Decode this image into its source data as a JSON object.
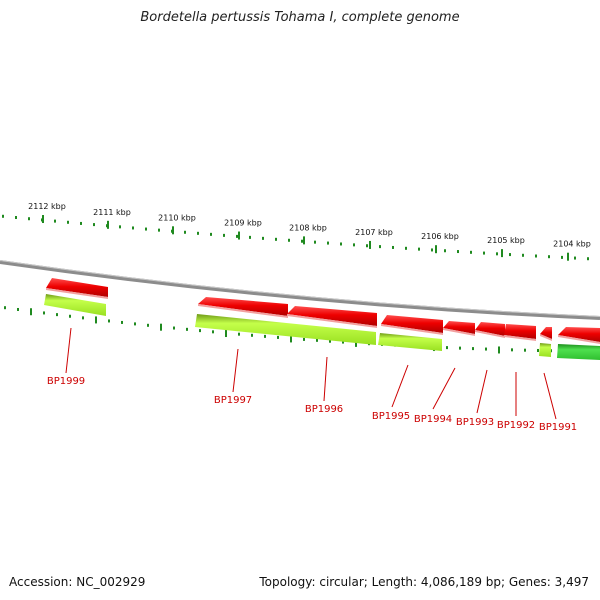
{
  "title": "Bordetella pertussis Tohama I, complete genome",
  "footer": {
    "accession": "Accession: NC_002929",
    "summary": "Topology: circular; Length: 4,086,189 bp; Genes: 3,497"
  },
  "colors": {
    "backbone": "#8a8a8a",
    "gene_red": "#ee0000",
    "gene_lime": "#a6ee2a",
    "gene_green": "#3bcf3b",
    "tick": "#1f8a1f",
    "label": "#cc0000"
  },
  "scale_labels": [
    "2112 kbp",
    "2111 kbp",
    "2110 kbp",
    "2109 kbp",
    "2108 kbp",
    "2107 kbp",
    "2106 kbp",
    "2105 kbp",
    "2104 kbp"
  ],
  "genes": [
    {
      "name": "BP1999"
    },
    {
      "name": "BP1997"
    },
    {
      "name": "BP1996"
    },
    {
      "name": "BP1995"
    },
    {
      "name": "BP1994"
    },
    {
      "name": "BP1993"
    },
    {
      "name": "BP1992"
    },
    {
      "name": "BP1991"
    }
  ]
}
